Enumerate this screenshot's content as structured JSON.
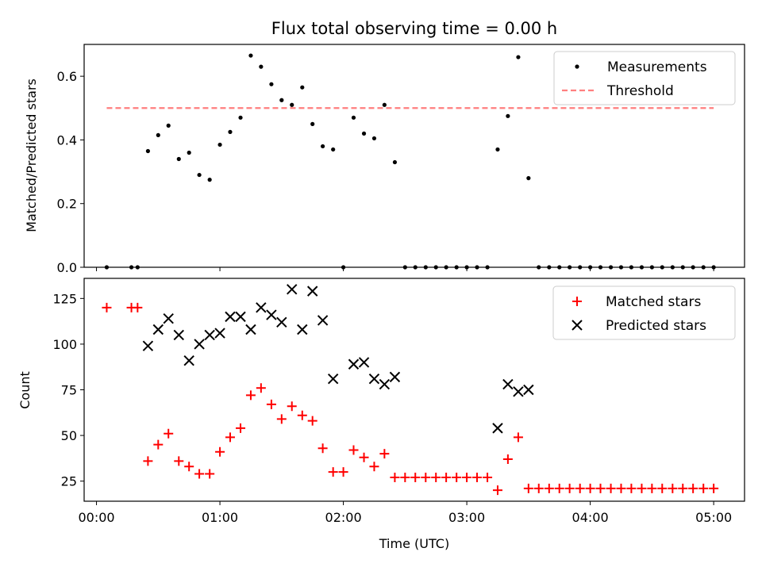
{
  "chart_data": [
    {
      "type": "scatter",
      "title": "Flux total observing time = 0.00 h",
      "xlabel": "",
      "ylabel": "Matched/Predicted stars",
      "xlim": [
        -0.1,
        5.25
      ],
      "ylim": [
        0,
        0.7
      ],
      "yticks": [
        0.0,
        0.2,
        0.4,
        0.6
      ],
      "ytick_labels": [
        "0.0",
        "0.2",
        "0.4",
        "0.6"
      ],
      "legend_position": "top-right",
      "threshold": {
        "name": "Threshold",
        "y": 0.5,
        "x_start": 0.083,
        "x_end": 5.0,
        "color": "#ff7f7f"
      },
      "series": [
        {
          "name": "Measurements",
          "marker": "dot",
          "color": "#000000",
          "x": [
            0.083,
            0.283,
            0.333,
            0.417,
            0.5,
            0.583,
            0.667,
            0.75,
            0.833,
            0.917,
            1.0,
            1.083,
            1.167,
            1.25,
            1.333,
            1.417,
            1.5,
            1.583,
            1.667,
            1.75,
            1.833,
            1.917,
            2.0,
            2.083,
            2.167,
            2.25,
            2.333,
            2.417,
            2.5,
            2.583,
            2.667,
            2.75,
            2.833,
            2.917,
            3.0,
            3.083,
            3.167,
            3.25,
            3.333,
            3.417,
            3.5,
            3.583,
            3.667,
            3.75,
            3.833,
            3.917,
            4.0,
            4.083,
            4.167,
            4.25,
            4.333,
            4.417,
            4.5,
            4.583,
            4.667,
            4.75,
            4.833,
            4.917,
            5.0
          ],
          "y": [
            0,
            0,
            0,
            0.365,
            0.415,
            0.445,
            0.34,
            0.36,
            0.29,
            0.275,
            0.385,
            0.425,
            0.47,
            0.665,
            0.63,
            0.575,
            0.525,
            0.51,
            0.565,
            0.45,
            0.38,
            0.37,
            0,
            0.47,
            0.42,
            0.405,
            0.51,
            0.33,
            0,
            0,
            0,
            0,
            0,
            0,
            0,
            0,
            0,
            0.37,
            0.475,
            0.66,
            0.28,
            0,
            0,
            0,
            0,
            0,
            0,
            0,
            0,
            0,
            0,
            0,
            0,
            0,
            0,
            0,
            0,
            0,
            0
          ]
        }
      ]
    },
    {
      "type": "scatter",
      "title": "",
      "xlabel": "Time (UTC)",
      "ylabel": "Count",
      "xlim": [
        -0.1,
        5.25
      ],
      "ylim": [
        14,
        136
      ],
      "xticks": [
        0,
        1,
        2,
        3,
        4,
        5
      ],
      "xtick_labels": [
        "00:00",
        "01:00",
        "02:00",
        "03:00",
        "04:00",
        "05:00"
      ],
      "yticks": [
        25,
        50,
        75,
        100,
        125
      ],
      "ytick_labels": [
        "25",
        "50",
        "75",
        "100",
        "125"
      ],
      "legend_position": "top-right",
      "series": [
        {
          "name": "Matched stars",
          "marker": "plus",
          "color": "#ff0000",
          "x": [
            0.083,
            0.283,
            0.333,
            0.417,
            0.5,
            0.583,
            0.667,
            0.75,
            0.833,
            0.917,
            1.0,
            1.083,
            1.167,
            1.25,
            1.333,
            1.417,
            1.5,
            1.583,
            1.667,
            1.75,
            1.833,
            1.917,
            2.0,
            2.083,
            2.167,
            2.25,
            2.333,
            2.417,
            2.5,
            2.583,
            2.667,
            2.75,
            2.833,
            2.917,
            3.0,
            3.083,
            3.167,
            3.25,
            3.333,
            3.417,
            3.5,
            3.583,
            3.667,
            3.75,
            3.833,
            3.917,
            4.0,
            4.083,
            4.167,
            4.25,
            4.333,
            4.417,
            4.5,
            4.583,
            4.667,
            4.75,
            4.833,
            4.917,
            5.0
          ],
          "y": [
            120,
            120,
            120,
            36,
            45,
            51,
            36,
            33,
            29,
            29,
            41,
            49,
            54,
            72,
            76,
            67,
            59,
            66,
            61,
            58,
            43,
            30,
            30,
            42,
            38,
            33,
            40,
            27,
            27,
            27,
            27,
            27,
            27,
            27,
            27,
            27,
            27,
            20,
            37,
            49,
            21,
            21,
            21,
            21,
            21,
            21,
            21,
            21,
            21,
            21,
            21,
            21,
            21,
            21,
            21,
            21,
            21,
            21,
            21
          ]
        },
        {
          "name": "Predicted stars",
          "marker": "x",
          "color": "#000000",
          "x": [
            0.417,
            0.5,
            0.583,
            0.667,
            0.75,
            0.833,
            0.917,
            1.0,
            1.083,
            1.167,
            1.25,
            1.333,
            1.417,
            1.5,
            1.583,
            1.667,
            1.75,
            1.833,
            1.917,
            2.083,
            2.167,
            2.25,
            2.333,
            2.417,
            3.25,
            3.333,
            3.417,
            3.5
          ],
          "y": [
            99,
            108,
            114,
            105,
            91,
            100,
            105,
            106,
            115,
            115,
            108,
            120,
            116,
            112,
            130,
            108,
            129,
            113,
            81,
            89,
            90,
            81,
            78,
            82,
            54,
            78,
            74,
            75
          ]
        }
      ]
    }
  ]
}
